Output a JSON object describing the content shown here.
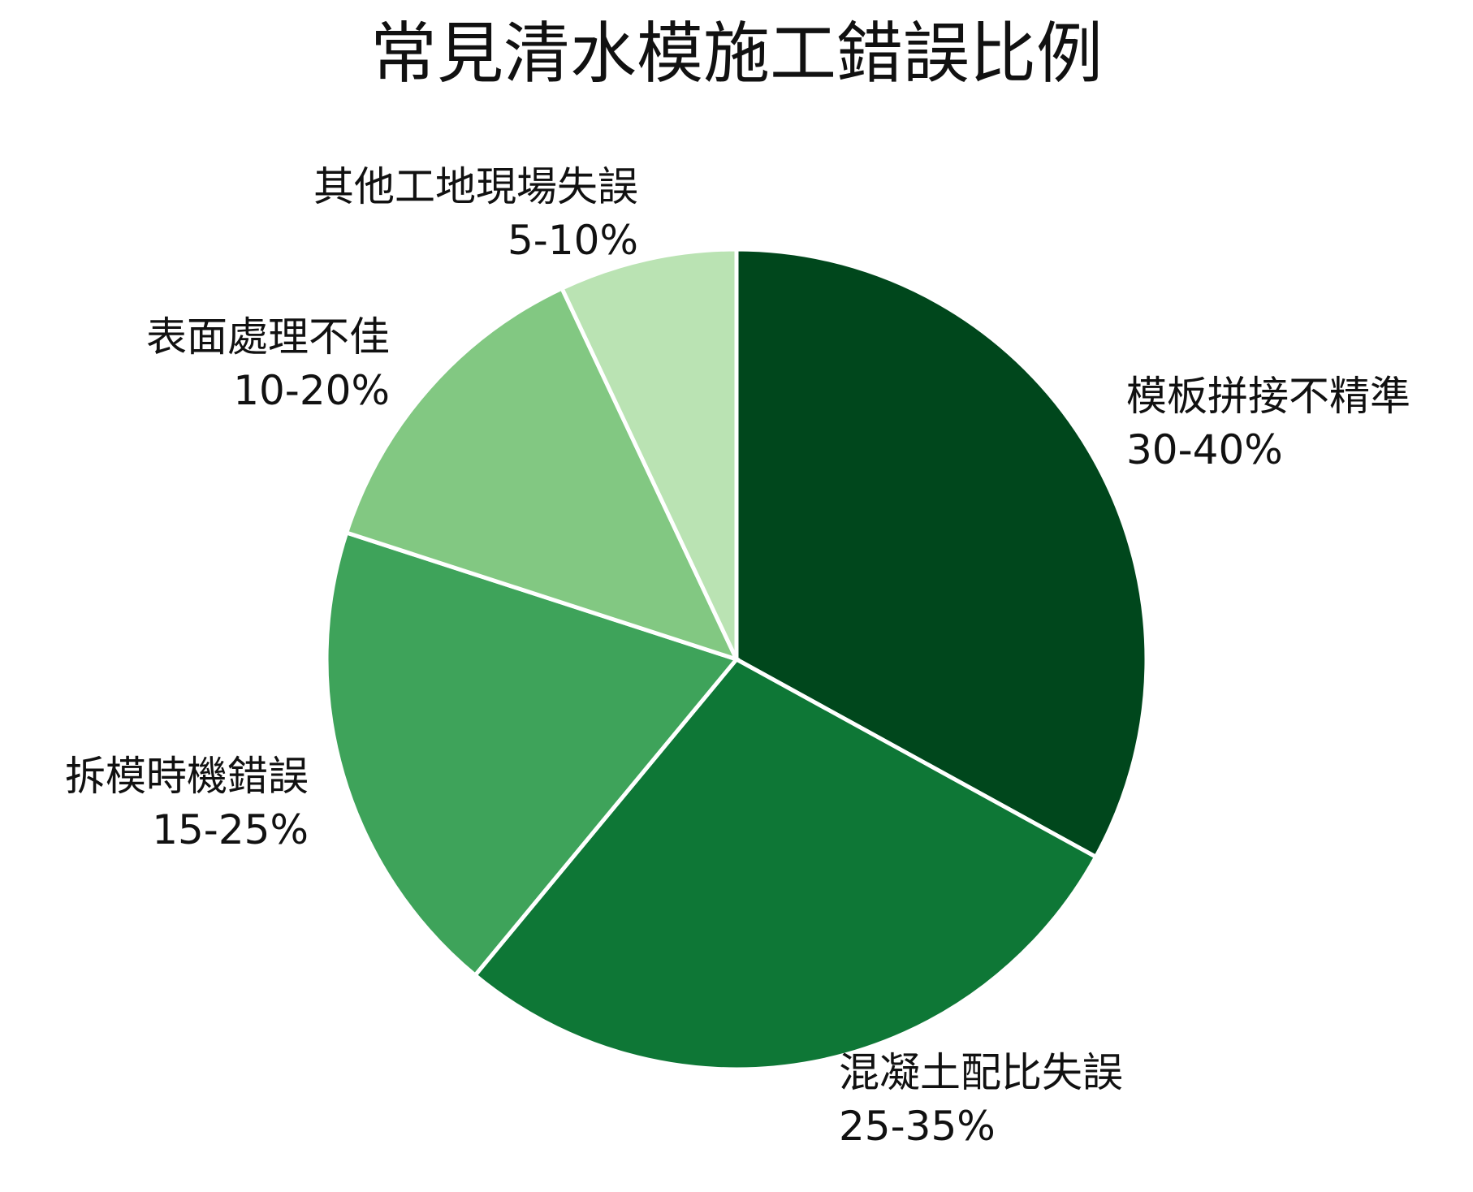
{
  "chart_data": {
    "type": "pie",
    "title": "常見清水模施工錯誤比例",
    "slices": [
      {
        "label": "模板拼接不精準",
        "range_text": "30-40%",
        "value": 33,
        "color": "#00471c"
      },
      {
        "label": "混凝土配比失誤",
        "range_text": "25-35%",
        "value": 28,
        "color": "#0e7736"
      },
      {
        "label": "拆模時機錯誤",
        "range_text": "15-25%",
        "value": 19,
        "color": "#3ea35a"
      },
      {
        "label": "表面處理不佳",
        "range_text": "10-20%",
        "value": 13,
        "color": "#82c882"
      },
      {
        "label": "其他工地現場失誤",
        "range_text": "5-10%",
        "value": 7,
        "color": "#bae3b3"
      }
    ],
    "start_angle": "12 o'clock",
    "direction": "clockwise",
    "legend": "none"
  }
}
